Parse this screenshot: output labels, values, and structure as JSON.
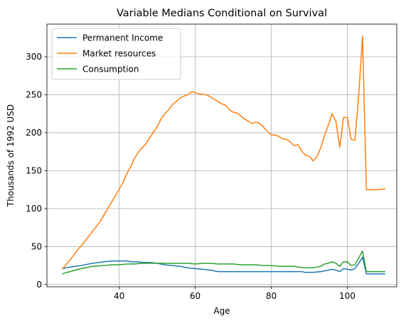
{
  "chart_data": {
    "type": "line",
    "title": "Variable Medians Conditional on Survival",
    "xlabel": "Age",
    "ylabel": "Thousands of 1992 USD",
    "xlim": [
      21,
      113
    ],
    "ylim": [
      -3,
      343
    ],
    "xticks": [
      40,
      60,
      80,
      100
    ],
    "yticks": [
      0,
      50,
      100,
      150,
      200,
      250,
      300
    ],
    "grid": true,
    "legend_position": "top-left",
    "series": [
      {
        "name": "Permanent Income",
        "color": "#1f77b4",
        "points": [
          [
            25,
            21
          ],
          [
            27,
            23
          ],
          [
            30,
            25
          ],
          [
            33,
            28
          ],
          [
            36,
            30
          ],
          [
            38,
            31
          ],
          [
            40,
            31
          ],
          [
            42,
            31
          ],
          [
            43,
            30
          ],
          [
            45,
            30
          ],
          [
            46,
            29
          ],
          [
            48,
            29
          ],
          [
            50,
            28
          ],
          [
            52,
            26
          ],
          [
            54,
            25
          ],
          [
            56,
            24
          ],
          [
            58,
            22
          ],
          [
            60,
            21
          ],
          [
            62,
            20
          ],
          [
            64,
            19
          ],
          [
            66,
            17
          ],
          [
            68,
            17
          ],
          [
            70,
            17
          ],
          [
            72,
            17
          ],
          [
            74,
            17
          ],
          [
            76,
            17
          ],
          [
            78,
            17
          ],
          [
            80,
            17
          ],
          [
            82,
            17
          ],
          [
            84,
            17
          ],
          [
            86,
            17
          ],
          [
            88,
            17
          ],
          [
            89,
            16
          ],
          [
            91,
            16
          ],
          [
            93,
            17
          ],
          [
            95,
            19
          ],
          [
            96,
            20
          ],
          [
            97,
            19
          ],
          [
            98,
            17
          ],
          [
            99,
            21
          ],
          [
            100,
            20
          ],
          [
            101,
            19
          ],
          [
            102,
            21
          ],
          [
            103,
            28
          ],
          [
            104,
            36
          ],
          [
            105,
            14
          ],
          [
            108,
            14
          ],
          [
            110,
            14
          ]
        ]
      },
      {
        "name": "Market resources",
        "color": "#ff7f0e",
        "points": [
          [
            25,
            20
          ],
          [
            27,
            32
          ],
          [
            29,
            45
          ],
          [
            31,
            57
          ],
          [
            33,
            70
          ],
          [
            35,
            83
          ],
          [
            37,
            100
          ],
          [
            39,
            117
          ],
          [
            41,
            134
          ],
          [
            42,
            146
          ],
          [
            43,
            155
          ],
          [
            44,
            166
          ],
          [
            45,
            174
          ],
          [
            46,
            180
          ],
          [
            47,
            185
          ],
          [
            48,
            193
          ],
          [
            50,
            208
          ],
          [
            51,
            218
          ],
          [
            52,
            225
          ],
          [
            53,
            230
          ],
          [
            54,
            237
          ],
          [
            55,
            241
          ],
          [
            56,
            246
          ],
          [
            57,
            248
          ],
          [
            58,
            250
          ],
          [
            59,
            254
          ],
          [
            60,
            253
          ],
          [
            61,
            251
          ],
          [
            63,
            250
          ],
          [
            64,
            247
          ],
          [
            65,
            244
          ],
          [
            66,
            241
          ],
          [
            67,
            238
          ],
          [
            68,
            236
          ],
          [
            69,
            230
          ],
          [
            70,
            227
          ],
          [
            71,
            226
          ],
          [
            72,
            222
          ],
          [
            73,
            218
          ],
          [
            74,
            215
          ],
          [
            75,
            212
          ],
          [
            76,
            214
          ],
          [
            77,
            212
          ],
          [
            78,
            207
          ],
          [
            79,
            202
          ],
          [
            80,
            197
          ],
          [
            81,
            197
          ],
          [
            82,
            195
          ],
          [
            83,
            192
          ],
          [
            84,
            191
          ],
          [
            85,
            188
          ],
          [
            86,
            183
          ],
          [
            87,
            184
          ],
          [
            88,
            176
          ],
          [
            89,
            170
          ],
          [
            90,
            169
          ],
          [
            91,
            163
          ],
          [
            92,
            168
          ],
          [
            93,
            180
          ],
          [
            94,
            196
          ],
          [
            95,
            210
          ],
          [
            96,
            225
          ],
          [
            97,
            215
          ],
          [
            98,
            181
          ],
          [
            99,
            220
          ],
          [
            100,
            220
          ],
          [
            101,
            191
          ],
          [
            102,
            190
          ],
          [
            103,
            250
          ],
          [
            104,
            327
          ],
          [
            105,
            125
          ],
          [
            108,
            125
          ],
          [
            110,
            126
          ]
        ]
      },
      {
        "name": "Consumption",
        "color": "#2ca02c",
        "points": [
          [
            25,
            14
          ],
          [
            27,
            17
          ],
          [
            30,
            21
          ],
          [
            33,
            24
          ],
          [
            36,
            25
          ],
          [
            38,
            26
          ],
          [
            40,
            26
          ],
          [
            42,
            27
          ],
          [
            44,
            27
          ],
          [
            46,
            28
          ],
          [
            48,
            28
          ],
          [
            50,
            28
          ],
          [
            52,
            28
          ],
          [
            54,
            28
          ],
          [
            56,
            28
          ],
          [
            58,
            28
          ],
          [
            60,
            27
          ],
          [
            62,
            28
          ],
          [
            64,
            28
          ],
          [
            66,
            27
          ],
          [
            68,
            27
          ],
          [
            70,
            27
          ],
          [
            72,
            26
          ],
          [
            74,
            26
          ],
          [
            76,
            26
          ],
          [
            78,
            25
          ],
          [
            80,
            25
          ],
          [
            82,
            24
          ],
          [
            84,
            24
          ],
          [
            86,
            24
          ],
          [
            87,
            23
          ],
          [
            89,
            22
          ],
          [
            91,
            22
          ],
          [
            92,
            23
          ],
          [
            93,
            24
          ],
          [
            94,
            27
          ],
          [
            95,
            28
          ],
          [
            96,
            30
          ],
          [
            97,
            28
          ],
          [
            98,
            24
          ],
          [
            99,
            30
          ],
          [
            100,
            30
          ],
          [
            101,
            25
          ],
          [
            102,
            26
          ],
          [
            103,
            35
          ],
          [
            104,
            44
          ],
          [
            105,
            17
          ],
          [
            108,
            17
          ],
          [
            110,
            17
          ]
        ]
      }
    ]
  }
}
